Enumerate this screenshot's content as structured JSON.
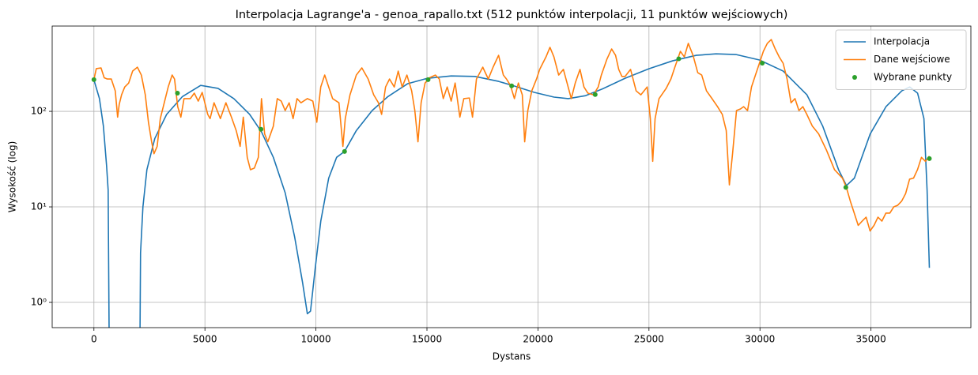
{
  "chart_data": {
    "type": "line",
    "title": "Interpolacja Lagrange'a - genoa_rapallo.txt (512 punktów interpolacji, 11 punktów wejściowych)",
    "x_label": "Dystans",
    "y_label": "Wysokość (log)",
    "log_y": true,
    "grid": true,
    "legend": "upper right",
    "xlim": [
      -1880,
      39500
    ],
    "ylim": [
      0.544,
      782
    ],
    "xticks": [
      0,
      5000,
      10000,
      15000,
      20000,
      25000,
      30000,
      35000
    ],
    "yticks": [
      {
        "value": 1,
        "label": "10⁰"
      },
      {
        "value": 10,
        "label": "10¹"
      },
      {
        "value": 100,
        "label": "10²"
      }
    ],
    "series": [
      {
        "name": "Interpolacja",
        "color": "#1f77b4",
        "style": "line",
        "x": [
          0,
          249,
          427,
          570,
          641,
          690,
          1000,
          2070,
          2100,
          2207,
          2386,
          2742,
          3276,
          3988,
          4807,
          5590,
          6302,
          7014,
          7548,
          8082,
          8616,
          9044,
          9400,
          9613,
          9756,
          9970,
          10219,
          10575,
          10931,
          11287,
          11821,
          12533,
          13245,
          14135,
          15025,
          16093,
          17162,
          18230,
          18942,
          19832,
          20723,
          21364,
          22147,
          22859,
          23927,
          24995,
          26063,
          27131,
          28021,
          28911,
          29979,
          31047,
          32115,
          32827,
          33540,
          33896,
          34252,
          34964,
          35676,
          36388,
          36744,
          37100,
          37385,
          37527,
          37630
        ],
        "values": [
          214,
          136,
          70,
          27,
          15,
          0.3,
          null,
          0.3,
          3.3,
          10,
          24.5,
          52,
          93,
          143,
          187,
          174,
          136,
          93,
          61,
          33,
          14,
          4.8,
          1.6,
          0.76,
          0.81,
          2.3,
          7.1,
          20,
          33,
          38,
          63,
          102,
          143,
          195,
          222,
          235,
          232,
          206,
          184,
          158,
          141,
          136,
          146,
          170,
          222,
          279,
          338,
          386,
          400,
          394,
          345,
          264,
          149,
          70,
          24.5,
          16.7,
          20,
          58,
          112,
          164,
          180,
          155,
          84,
          15,
          2.3
        ]
      },
      {
        "name": "Dane wejściowe",
        "color": "#ff7f0e",
        "style": "line",
        "x": [
          0,
          107,
          320,
          463,
          605,
          783,
          961,
          1068,
          1139,
          1246,
          1388,
          1566,
          1744,
          1958,
          2136,
          2314,
          2456,
          2599,
          2706,
          2848,
          2990,
          3168,
          3346,
          3524,
          3631,
          3774,
          3916,
          4058,
          4343,
          4521,
          4699,
          4877,
          5126,
          5233,
          5411,
          5696,
          5945,
          6194,
          6408,
          6586,
          6728,
          6906,
          7049,
          7227,
          7405,
          7547,
          7690,
          7832,
          8081,
          8259,
          8437,
          8615,
          8793,
          8971,
          9149,
          9327,
          9612,
          9861,
          10039,
          10217,
          10395,
          10573,
          10751,
          11036,
          11214,
          11321,
          11534,
          11819,
          12068,
          12353,
          12602,
          12816,
          12958,
          13136,
          13314,
          13528,
          13706,
          13884,
          14098,
          14311,
          14454,
          14596,
          14738,
          14916,
          15130,
          15379,
          15557,
          15735,
          15913,
          16091,
          16269,
          16483,
          16661,
          16910,
          17052,
          17230,
          17515,
          17764,
          17978,
          18227,
          18441,
          18583,
          18761,
          18939,
          19117,
          19295,
          19402,
          19544,
          19722,
          19936,
          20078,
          20363,
          20541,
          20719,
          20933,
          21146,
          21360,
          21502,
          21680,
          21894,
          22072,
          22250,
          22499,
          22713,
          22855,
          23104,
          23318,
          23496,
          23638,
          23781,
          23923,
          24172,
          24422,
          24635,
          24920,
          25062,
          25169,
          25276,
          25454,
          25774,
          25988,
          26166,
          26415,
          26593,
          26771,
          26985,
          27198,
          27376,
          27590,
          27839,
          28088,
          28302,
          28480,
          28622,
          28765,
          28943,
          29121,
          29263,
          29441,
          29619,
          29797,
          29975,
          30153,
          30331,
          30509,
          30687,
          30865,
          31043,
          31221,
          31399,
          31577,
          31755,
          31933,
          32111,
          32360,
          32645,
          33001,
          33357,
          33713,
          33891,
          34069,
          34247,
          34425,
          34603,
          34781,
          34959,
          35137,
          35315,
          35493,
          35671,
          35849,
          36027,
          36205,
          36383,
          36561,
          36739,
          36917,
          37095,
          37273,
          37451,
          37630
        ],
        "values": [
          215,
          280,
          285,
          225,
          218,
          218,
          164,
          87,
          118,
          149,
          180,
          198,
          264,
          290,
          240,
          149,
          77,
          48,
          36,
          43,
          84,
          123,
          180,
          240,
          218,
          112,
          87,
          136,
          136,
          155,
          128,
          158,
          93,
          84,
          123,
          84,
          123,
          87,
          63,
          43,
          87,
          33,
          24.5,
          25.5,
          33,
          136,
          58,
          48,
          70,
          136,
          128,
          102,
          123,
          84,
          136,
          123,
          136,
          128,
          77,
          180,
          240,
          180,
          136,
          123,
          43,
          84,
          149,
          240,
          285,
          218,
          149,
          123,
          93,
          180,
          218,
          180,
          264,
          180,
          240,
          164,
          102,
          48,
          123,
          198,
          226,
          240,
          218,
          136,
          180,
          128,
          198,
          87,
          136,
          138,
          87,
          218,
          290,
          218,
          290,
          386,
          240,
          218,
          187,
          136,
          198,
          149,
          48,
          102,
          164,
          218,
          275,
          372,
          468,
          372,
          240,
          275,
          180,
          136,
          198,
          275,
          180,
          155,
          149,
          180,
          240,
          351,
          450,
          386,
          275,
          232,
          232,
          275,
          164,
          149,
          180,
          84,
          30,
          84,
          136,
          174,
          218,
          290,
          425,
          372,
          515,
          386,
          254,
          240,
          164,
          136,
          112,
          93,
          63,
          17,
          36,
          102,
          106,
          112,
          102,
          180,
          240,
          319,
          425,
          515,
          565,
          450,
          372,
          319,
          218,
          123,
          136,
          102,
          112,
          93,
          70,
          58,
          39,
          24.5,
          20,
          16,
          11.5,
          8.6,
          6.4,
          7.1,
          7.8,
          5.6,
          6.4,
          7.8,
          7.1,
          8.6,
          8.6,
          10,
          10.4,
          11.5,
          13.8,
          19.5,
          20,
          24.5,
          33,
          30,
          34
        ]
      },
      {
        "name": "Wybrane punkty",
        "color": "#2ca02c",
        "style": "points",
        "x": [
          0,
          3763,
          7526,
          11289,
          15052,
          18815,
          22578,
          26341,
          30104,
          33867,
          37630
        ],
        "values": [
          215,
          155,
          65,
          38,
          215,
          185,
          150,
          355,
          320,
          16,
          32
        ]
      }
    ]
  }
}
